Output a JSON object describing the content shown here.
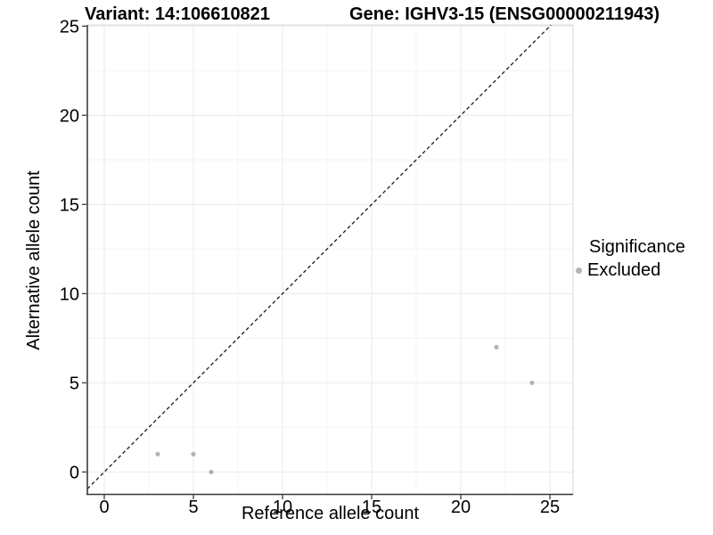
{
  "chart_data": {
    "type": "scatter",
    "title_left": "Variant: 14:106610821",
    "title_right": "Gene: IGHV3-15 (ENSG00000211943)",
    "xlabel": "Reference allele count",
    "ylabel": "Alternative allele count",
    "xlim": [
      0,
      25
    ],
    "ylim": [
      0,
      25
    ],
    "xticks": [
      0,
      5,
      10,
      15,
      20,
      25
    ],
    "yticks": [
      0,
      5,
      10,
      15,
      20,
      25
    ],
    "xminor": [
      2.5,
      7.5,
      12.5,
      17.5,
      22.5
    ],
    "yminor": [
      2.5,
      7.5,
      12.5,
      17.5,
      22.5
    ],
    "grid": true,
    "legend_position": "right",
    "identity_line": {
      "slope": 1,
      "intercept": 0,
      "style": "dashed",
      "color": "#1a1a1a"
    },
    "legend": {
      "title": "Significance",
      "items": [
        {
          "label": "Excluded",
          "color": "#b4b4b4"
        }
      ]
    },
    "series": [
      {
        "name": "Excluded",
        "color": "#b4b4b4",
        "points": [
          [
            3,
            1
          ],
          [
            5,
            1
          ],
          [
            6,
            0
          ],
          [
            22,
            7
          ],
          [
            24,
            5
          ]
        ]
      }
    ],
    "colors": {
      "background": "#ffffff",
      "grid_major": "#e9e9e9",
      "grid_minor": "#f4f4f4",
      "panel_border": "#d8d8d8",
      "axis_line": "#3c3c3c",
      "tick_label": "#000000",
      "point": "#b4b4b4"
    }
  }
}
